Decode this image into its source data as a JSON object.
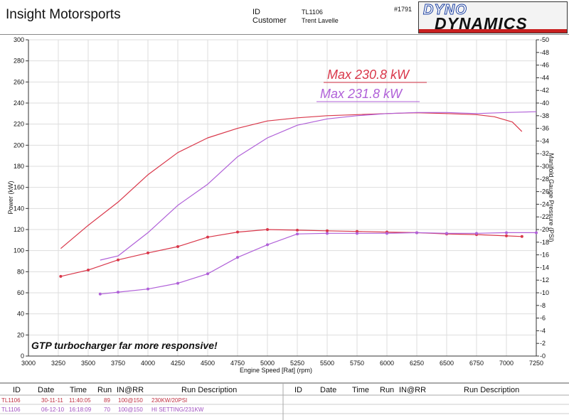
{
  "header": {
    "brand": "Insight Motorsports",
    "id_label": "ID",
    "customer_label": "Customer",
    "id_value": "TL1106",
    "customer_value": "Trent Lavelle",
    "run_number": "#1791",
    "logo_line1": "DYNO",
    "logo_line2": "DYNAMICS"
  },
  "colors": {
    "run1": "#d9374a",
    "run2": "#b060d8",
    "grid": "#dddddd"
  },
  "chart_data": {
    "type": "line",
    "xlabel": "Engine Speed [Rat] (rpm)",
    "ylabel": "Power (kW)",
    "y2label": "Manifold Gauge Pressure (PSI)",
    "xlim": [
      3000,
      7250
    ],
    "ylim": [
      0,
      300
    ],
    "y2lim": [
      0,
      50
    ],
    "x_ticks": [
      3000,
      3250,
      3500,
      3750,
      4000,
      4250,
      4500,
      4750,
      5000,
      5250,
      5500,
      5750,
      6000,
      6250,
      6500,
      6750,
      7000,
      7250
    ],
    "y_ticks": [
      0,
      20,
      40,
      60,
      80,
      100,
      120,
      140,
      160,
      180,
      200,
      220,
      240,
      260,
      280,
      300
    ],
    "y2_ticks": [
      0,
      2,
      4,
      6,
      8,
      10,
      12,
      14,
      16,
      18,
      20,
      22,
      24,
      26,
      28,
      30,
      32,
      34,
      36,
      38,
      40,
      42,
      44,
      46,
      48,
      50
    ],
    "grid": true,
    "annotations": {
      "max1": "Max 230.8 kW",
      "max2": "Max 231.8 kW",
      "note": "GTP turbocharger far more responsive!"
    },
    "series": [
      {
        "axis": "left",
        "color": "#d9374a",
        "x": [
          3270,
          3500,
          3750,
          4000,
          4250,
          4500,
          4750,
          5000,
          5250,
          5500,
          5750,
          6000,
          6250,
          6500,
          6750,
          6900,
          7050,
          7130
        ],
        "y": [
          102,
          124,
          146,
          172,
          193,
          207,
          216,
          223,
          226,
          228,
          229,
          230,
          230.8,
          230,
          229,
          227,
          222,
          213
        ]
      },
      {
        "axis": "left",
        "color": "#b060d8",
        "x": [
          3600,
          3750,
          4000,
          4250,
          4500,
          4750,
          5000,
          5250,
          5500,
          5750,
          6000,
          6250,
          6500,
          6750,
          7000,
          7250
        ],
        "y": [
          91,
          95,
          117,
          143,
          163,
          189,
          207,
          219,
          225,
          228,
          230,
          231,
          231,
          230,
          231,
          231.8
        ]
      },
      {
        "axis": "right",
        "color": "#d9374a",
        "markers": true,
        "x": [
          3270,
          3500,
          3750,
          4000,
          4250,
          4500,
          4750,
          5000,
          5250,
          5500,
          5750,
          6000,
          6250,
          6500,
          6750,
          7000,
          7130
        ],
        "y": [
          12.6,
          13.6,
          15.2,
          16.3,
          17.3,
          18.8,
          19.6,
          20.0,
          19.9,
          19.8,
          19.7,
          19.6,
          19.5,
          19.3,
          19.2,
          19.0,
          18.9
        ]
      },
      {
        "axis": "right",
        "color": "#b060d8",
        "markers": true,
        "x": [
          3600,
          3750,
          4000,
          4250,
          4500,
          4750,
          5000,
          5250,
          5500,
          5750,
          6000,
          6250,
          6500,
          6750,
          7000,
          7250
        ],
        "y": [
          9.8,
          10.1,
          10.6,
          11.5,
          13.0,
          15.6,
          17.6,
          19.3,
          19.4,
          19.4,
          19.4,
          19.5,
          19.4,
          19.4,
          19.5,
          19.5
        ]
      }
    ]
  },
  "table": {
    "headers": [
      "ID",
      "Date",
      "Time",
      "Run",
      "IN@RR",
      "Run Description",
      "ID",
      "Date",
      "Time",
      "Run",
      "IN@RR",
      "Run Description"
    ],
    "rows": [
      [
        "TL1106",
        "30-11-11",
        "11:40:05",
        "89",
        "100@150",
        "230KW/20PSI"
      ],
      [
        "TL1106",
        "06-12-10",
        "16:18:09",
        "70",
        "100@150",
        "HI SETTING/231KW"
      ]
    ]
  }
}
